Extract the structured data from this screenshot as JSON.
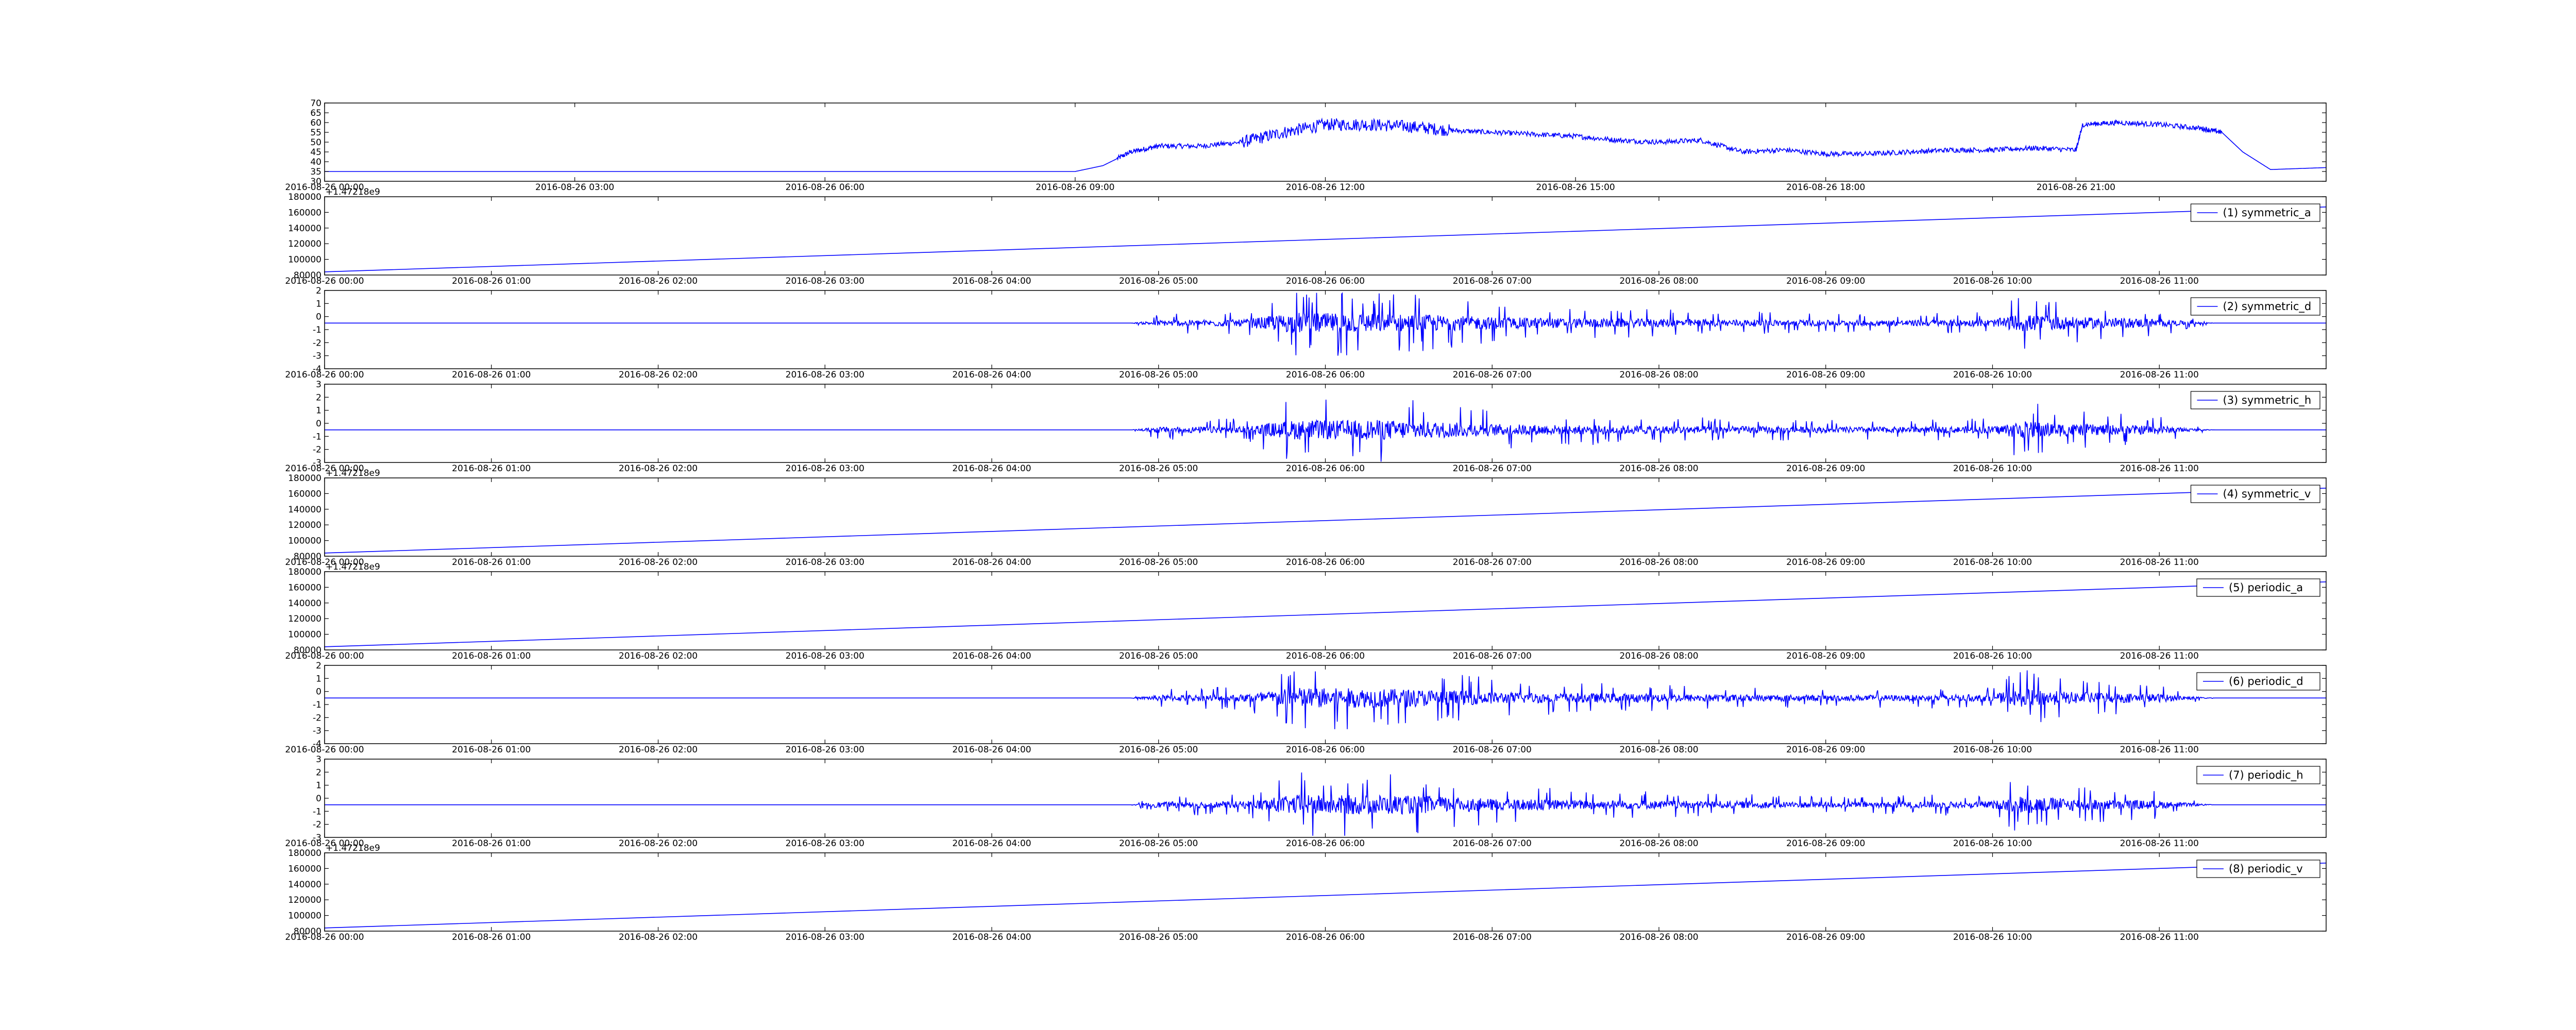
{
  "chart_data": [
    {
      "id": "p0",
      "type": "line",
      "title": "",
      "legend": "",
      "x_type": "datetime",
      "xlim": [
        "2016-08-26 00:00",
        "2016-08-27 00:00"
      ],
      "xticks": [
        "2016-08-26 00:00",
        "2016-08-26 03:00",
        "2016-08-26 06:00",
        "2016-08-26 09:00",
        "2016-08-26 12:00",
        "2016-08-26 15:00",
        "2016-08-26 18:00",
        "2016-08-26 21:00"
      ],
      "ylim": [
        30,
        70
      ],
      "yticks": [
        30,
        35,
        40,
        45,
        50,
        55,
        60,
        65,
        70
      ],
      "y_offset": "",
      "color": "#0000ff",
      "series": [
        {
          "x": [
            "2016-08-26 00:00",
            "2016-08-26 09:00",
            "2016-08-26 09:20",
            "2016-08-26 09:40",
            "2016-08-26 10:00",
            "2016-08-26 10:30",
            "2016-08-26 11:00",
            "2016-08-26 11:30",
            "2016-08-26 12:00",
            "2016-08-26 12:30",
            "2016-08-26 13:00",
            "2016-08-26 13:30",
            "2016-08-26 14:00",
            "2016-08-26 14:30",
            "2016-08-26 15:00",
            "2016-08-26 15:30",
            "2016-08-26 16:00",
            "2016-08-26 16:30",
            "2016-08-26 17:00",
            "2016-08-26 17:30",
            "2016-08-26 18:00",
            "2016-08-26 18:30",
            "2016-08-26 19:00",
            "2016-08-26 19:30",
            "2016-08-26 20:00",
            "2016-08-26 20:30",
            "2016-08-26 21:00",
            "2016-08-26 21:05",
            "2016-08-26 21:30",
            "2016-08-26 22:00",
            "2016-08-26 22:30",
            "2016-08-26 22:45",
            "2016-08-26 23:00",
            "2016-08-26 23:20",
            "2016-08-27 00:00"
          ],
          "y": [
            35,
            35,
            38,
            45,
            48,
            48,
            50,
            55,
            59,
            59,
            58,
            56,
            55,
            54,
            53,
            51,
            50,
            51,
            45,
            46,
            44,
            44,
            45,
            46,
            46,
            47,
            46,
            59,
            60,
            59,
            57,
            55,
            45,
            36,
            37
          ]
        }
      ]
    },
    {
      "id": "p1",
      "type": "line",
      "title": "",
      "legend": "(1) symmetric_a",
      "x_type": "datetime",
      "xlim": [
        "2016-08-26 00:00",
        "2016-08-26 12:00"
      ],
      "xticks": [
        "2016-08-26 00:00",
        "2016-08-26 01:00",
        "2016-08-26 02:00",
        "2016-08-26 03:00",
        "2016-08-26 04:00",
        "2016-08-26 05:00",
        "2016-08-26 06:00",
        "2016-08-26 07:00",
        "2016-08-26 08:00",
        "2016-08-26 09:00",
        "2016-08-26 10:00",
        "2016-08-26 11:00"
      ],
      "ylim": [
        80000,
        180000
      ],
      "yticks": [
        80000,
        100000,
        120000,
        140000,
        160000,
        180000
      ],
      "y_offset": "+1.47218e9",
      "color": "#0000ff",
      "series": [
        {
          "x": [
            "2016-08-26 00:00",
            "2016-08-26 12:00"
          ],
          "y": [
            84000,
            167000
          ]
        }
      ]
    },
    {
      "id": "p2",
      "type": "line",
      "title": "",
      "legend": "(2) symmetric_d",
      "x_type": "datetime",
      "xlim": [
        "2016-08-26 00:00",
        "2016-08-26 12:00"
      ],
      "xticks": [
        "2016-08-26 00:00",
        "2016-08-26 01:00",
        "2016-08-26 02:00",
        "2016-08-26 03:00",
        "2016-08-26 04:00",
        "2016-08-26 05:00",
        "2016-08-26 06:00",
        "2016-08-26 07:00",
        "2016-08-26 08:00",
        "2016-08-26 09:00",
        "2016-08-26 10:00",
        "2016-08-26 11:00"
      ],
      "ylim": [
        -4,
        2
      ],
      "yticks": [
        -4,
        -3,
        -2,
        -1,
        0,
        1,
        2
      ],
      "y_offset": "",
      "color": "#0000ff",
      "series": [
        {
          "baseline": -0.5,
          "x": [
            "2016-08-26 00:00",
            "2016-08-26 04:50",
            "2016-08-26 05:00",
            "2016-08-26 05:30",
            "2016-08-26 05:50",
            "2016-08-26 06:00",
            "2016-08-26 06:20",
            "2016-08-26 06:40",
            "2016-08-26 07:00",
            "2016-08-26 07:30",
            "2016-08-26 08:00",
            "2016-08-26 08:30",
            "2016-08-26 09:00",
            "2016-08-26 09:30",
            "2016-08-26 10:00",
            "2016-08-26 10:10",
            "2016-08-26 10:30",
            "2016-08-26 11:00",
            "2016-08-26 11:10",
            "2016-08-26 11:20",
            "2016-08-26 12:00"
          ],
          "amplitude": [
            0,
            0,
            0.5,
            0.6,
            1.8,
            1.7,
            1.6,
            1.4,
            1.0,
            0.8,
            0.7,
            0.6,
            0.5,
            0.5,
            0.6,
            1.5,
            1.0,
            0.7,
            0.3,
            0,
            0
          ]
        }
      ]
    },
    {
      "id": "p3",
      "type": "line",
      "title": "",
      "legend": "(3) symmetric_h",
      "x_type": "datetime",
      "xlim": [
        "2016-08-26 00:00",
        "2016-08-26 12:00"
      ],
      "xticks": [
        "2016-08-26 00:00",
        "2016-08-26 01:00",
        "2016-08-26 02:00",
        "2016-08-26 03:00",
        "2016-08-26 04:00",
        "2016-08-26 05:00",
        "2016-08-26 06:00",
        "2016-08-26 07:00",
        "2016-08-26 08:00",
        "2016-08-26 09:00",
        "2016-08-26 10:00",
        "2016-08-26 11:00"
      ],
      "ylim": [
        -3,
        3
      ],
      "yticks": [
        -3,
        -2,
        -1,
        0,
        1,
        2,
        3
      ],
      "y_offset": "",
      "color": "#0000ff",
      "series": [
        {
          "baseline": -0.5,
          "x": [
            "2016-08-26 00:00",
            "2016-08-26 04:50",
            "2016-08-26 05:00",
            "2016-08-26 05:30",
            "2016-08-26 05:50",
            "2016-08-26 06:00",
            "2016-08-26 06:20",
            "2016-08-26 06:40",
            "2016-08-26 07:00",
            "2016-08-26 07:30",
            "2016-08-26 08:00",
            "2016-08-26 08:30",
            "2016-08-26 09:00",
            "2016-08-26 09:30",
            "2016-08-26 10:00",
            "2016-08-26 10:10",
            "2016-08-26 10:30",
            "2016-08-26 11:00",
            "2016-08-26 11:10",
            "2016-08-26 11:20",
            "2016-08-26 12:00"
          ],
          "amplitude": [
            0,
            0,
            0.5,
            0.6,
            1.7,
            1.6,
            1.7,
            1.4,
            1.0,
            0.8,
            0.7,
            0.6,
            0.5,
            0.5,
            0.6,
            1.5,
            1.0,
            0.7,
            0.3,
            0,
            0
          ]
        }
      ]
    },
    {
      "id": "p4",
      "type": "line",
      "title": "",
      "legend": "(4) symmetric_v",
      "x_type": "datetime",
      "xlim": [
        "2016-08-26 00:00",
        "2016-08-26 12:00"
      ],
      "xticks": [
        "2016-08-26 00:00",
        "2016-08-26 01:00",
        "2016-08-26 02:00",
        "2016-08-26 03:00",
        "2016-08-26 04:00",
        "2016-08-26 05:00",
        "2016-08-26 06:00",
        "2016-08-26 07:00",
        "2016-08-26 08:00",
        "2016-08-26 09:00",
        "2016-08-26 10:00",
        "2016-08-26 11:00"
      ],
      "ylim": [
        80000,
        180000
      ],
      "yticks": [
        80000,
        100000,
        120000,
        140000,
        160000,
        180000
      ],
      "y_offset": "+1.47218e9",
      "color": "#0000ff",
      "series": [
        {
          "x": [
            "2016-08-26 00:00",
            "2016-08-26 12:00"
          ],
          "y": [
            84000,
            167000
          ]
        }
      ]
    },
    {
      "id": "p5",
      "type": "line",
      "title": "",
      "legend": "(5) periodic_a",
      "x_type": "datetime",
      "xlim": [
        "2016-08-26 00:00",
        "2016-08-26 12:00"
      ],
      "xticks": [
        "2016-08-26 00:00",
        "2016-08-26 01:00",
        "2016-08-26 02:00",
        "2016-08-26 03:00",
        "2016-08-26 04:00",
        "2016-08-26 05:00",
        "2016-08-26 06:00",
        "2016-08-26 07:00",
        "2016-08-26 08:00",
        "2016-08-26 09:00",
        "2016-08-26 10:00",
        "2016-08-26 11:00"
      ],
      "ylim": [
        80000,
        180000
      ],
      "yticks": [
        80000,
        100000,
        120000,
        140000,
        160000,
        180000
      ],
      "y_offset": "+1.47218e9",
      "color": "#0000ff",
      "series": [
        {
          "x": [
            "2016-08-26 00:00",
            "2016-08-26 12:00"
          ],
          "y": [
            84000,
            167000
          ]
        }
      ]
    },
    {
      "id": "p6",
      "type": "line",
      "title": "",
      "legend": "(6) periodic_d",
      "x_type": "datetime",
      "xlim": [
        "2016-08-26 00:00",
        "2016-08-26 12:00"
      ],
      "xticks": [
        "2016-08-26 00:00",
        "2016-08-26 01:00",
        "2016-08-26 02:00",
        "2016-08-26 03:00",
        "2016-08-26 04:00",
        "2016-08-26 05:00",
        "2016-08-26 06:00",
        "2016-08-26 07:00",
        "2016-08-26 08:00",
        "2016-08-26 09:00",
        "2016-08-26 10:00",
        "2016-08-26 11:00"
      ],
      "ylim": [
        -4,
        2
      ],
      "yticks": [
        -4,
        -3,
        -2,
        -1,
        0,
        1,
        2
      ],
      "y_offset": "",
      "color": "#0000ff",
      "series": [
        {
          "baseline": -0.5,
          "x": [
            "2016-08-26 00:00",
            "2016-08-26 04:50",
            "2016-08-26 05:00",
            "2016-08-26 05:30",
            "2016-08-26 05:50",
            "2016-08-26 06:00",
            "2016-08-26 06:20",
            "2016-08-26 06:40",
            "2016-08-26 07:00",
            "2016-08-26 07:30",
            "2016-08-26 08:00",
            "2016-08-26 08:30",
            "2016-08-26 09:00",
            "2016-08-26 09:30",
            "2016-08-26 10:00",
            "2016-08-26 10:10",
            "2016-08-26 10:30",
            "2016-08-26 11:00",
            "2016-08-26 11:10",
            "2016-08-26 11:20",
            "2016-08-26 12:00"
          ],
          "amplitude": [
            0,
            0,
            0.5,
            0.6,
            1.8,
            1.7,
            1.6,
            1.4,
            1.0,
            0.8,
            0.7,
            0.6,
            0.5,
            0.5,
            0.6,
            1.5,
            1.0,
            0.7,
            0.3,
            0,
            0
          ]
        }
      ]
    },
    {
      "id": "p7",
      "type": "line",
      "title": "",
      "legend": "(7) periodic_h",
      "x_type": "datetime",
      "xlim": [
        "2016-08-26 00:00",
        "2016-08-26 12:00"
      ],
      "xticks": [
        "2016-08-26 00:00",
        "2016-08-26 01:00",
        "2016-08-26 02:00",
        "2016-08-26 03:00",
        "2016-08-26 04:00",
        "2016-08-26 05:00",
        "2016-08-26 06:00",
        "2016-08-26 07:00",
        "2016-08-26 08:00",
        "2016-08-26 09:00",
        "2016-08-26 10:00",
        "2016-08-26 11:00"
      ],
      "ylim": [
        -3,
        3
      ],
      "yticks": [
        -3,
        -2,
        -1,
        0,
        1,
        2,
        3
      ],
      "y_offset": "",
      "color": "#0000ff",
      "series": [
        {
          "baseline": -0.5,
          "x": [
            "2016-08-26 00:00",
            "2016-08-26 04:50",
            "2016-08-26 05:00",
            "2016-08-26 05:30",
            "2016-08-26 05:50",
            "2016-08-26 06:00",
            "2016-08-26 06:20",
            "2016-08-26 06:40",
            "2016-08-26 07:00",
            "2016-08-26 07:30",
            "2016-08-26 08:00",
            "2016-08-26 08:30",
            "2016-08-26 09:00",
            "2016-08-26 09:30",
            "2016-08-26 10:00",
            "2016-08-26 10:10",
            "2016-08-26 10:30",
            "2016-08-26 11:00",
            "2016-08-26 11:10",
            "2016-08-26 11:20",
            "2016-08-26 12:00"
          ],
          "amplitude": [
            0,
            0,
            0.5,
            0.6,
            1.7,
            1.6,
            1.7,
            1.4,
            1.0,
            0.8,
            0.7,
            0.6,
            0.5,
            0.5,
            0.6,
            1.5,
            1.0,
            0.7,
            0.3,
            0,
            0
          ]
        }
      ]
    },
    {
      "id": "p8",
      "type": "line",
      "title": "",
      "legend": "(8) periodic_v",
      "x_type": "datetime",
      "xlim": [
        "2016-08-26 00:00",
        "2016-08-26 12:00"
      ],
      "xticks": [
        "2016-08-26 00:00",
        "2016-08-26 01:00",
        "2016-08-26 02:00",
        "2016-08-26 03:00",
        "2016-08-26 04:00",
        "2016-08-26 05:00",
        "2016-08-26 06:00",
        "2016-08-26 07:00",
        "2016-08-26 08:00",
        "2016-08-26 09:00",
        "2016-08-26 10:00",
        "2016-08-26 11:00"
      ],
      "ylim": [
        80000,
        180000
      ],
      "yticks": [
        80000,
        100000,
        120000,
        140000,
        160000,
        180000
      ],
      "y_offset": "+1.47218e9",
      "color": "#0000ff",
      "series": [
        {
          "x": [
            "2016-08-26 00:00",
            "2016-08-26 12:00"
          ],
          "y": [
            84000,
            167000
          ]
        }
      ]
    }
  ]
}
